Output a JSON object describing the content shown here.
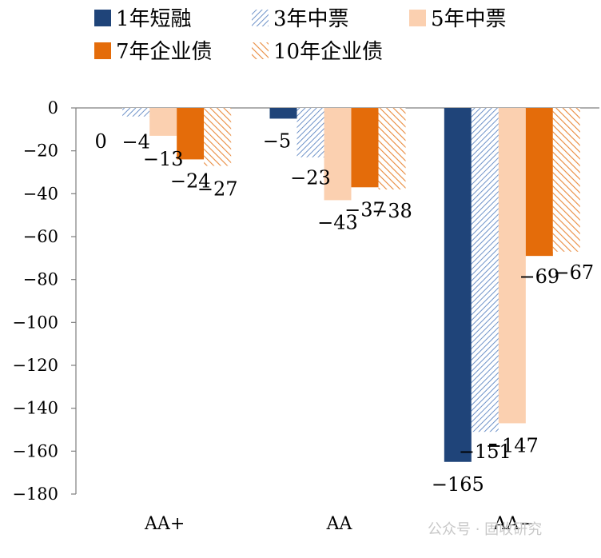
{
  "chart_data": {
    "type": "bar",
    "categories": [
      "AA+",
      "AA",
      "AA−"
    ],
    "series": [
      {
        "name": "1年短融",
        "values": [
          0,
          -5,
          -165
        ],
        "color": "#1f4479",
        "fill": "solid"
      },
      {
        "name": "3年中票",
        "values": [
          -4,
          -23,
          -151
        ],
        "color": "#6f93c9",
        "fill": "hatch"
      },
      {
        "name": "5年中票",
        "values": [
          -13,
          -43,
          -147
        ],
        "color": "#fbd0b0",
        "fill": "solid"
      },
      {
        "name": "7年企业债",
        "values": [
          -24,
          -37,
          -69
        ],
        "color": "#e46c0a",
        "fill": "solid"
      },
      {
        "name": "10年企业债",
        "values": [
          -27,
          -38,
          -67
        ],
        "color": "#e98a3c",
        "fill": "hatch"
      }
    ],
    "yticks": [
      "0",
      "−20",
      "−40",
      "−60",
      "−80",
      "−100",
      "−120",
      "−140",
      "−160",
      "−180"
    ],
    "ylim": [
      -180,
      0
    ],
    "data_labels": [
      [
        "0",
        "−5",
        "−165"
      ],
      [
        "−4",
        "−23",
        "−151"
      ],
      [
        "−13",
        "−43",
        "−147"
      ],
      [
        "−24",
        "−37",
        "−69"
      ],
      [
        "−27",
        "−38",
        "−67"
      ]
    ],
    "legend_position": "top",
    "grid": false
  },
  "watermark": "公众号 · 固收研究"
}
